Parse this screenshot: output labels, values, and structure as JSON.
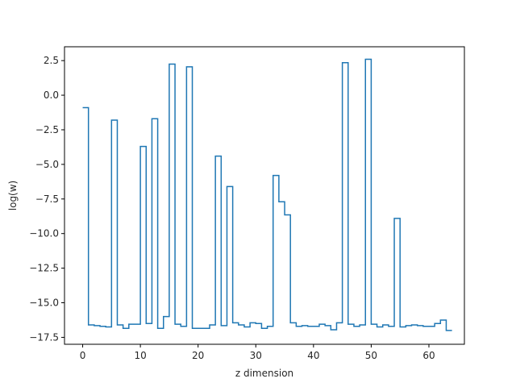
{
  "chart_data": {
    "type": "line",
    "drawstyle": "steps-post",
    "xlabel": "z dimension",
    "ylabel": "log(w)",
    "xlim": [
      -3.15,
      66.15
    ],
    "ylim": [
      -18.0,
      3.5
    ],
    "xticks": [
      0,
      10,
      20,
      30,
      40,
      50,
      60
    ],
    "yticks": [
      -17.5,
      -15.0,
      -12.5,
      -10.0,
      -7.5,
      -5.0,
      -2.5,
      0.0,
      2.5
    ],
    "ytick_labels": [
      "−17.5",
      "−15.0",
      "−12.5",
      "−10.0",
      "−7.5",
      "−5.0",
      "−2.5",
      "0.0",
      "2.5"
    ],
    "grid": false,
    "line_color": "#1f77b4",
    "series": [
      {
        "x": [
          0,
          1,
          2,
          3,
          4,
          5,
          6,
          7,
          8,
          9,
          10,
          11,
          12,
          13,
          14,
          15,
          16,
          17,
          18,
          19,
          20,
          21,
          22,
          23,
          24,
          25,
          26,
          27,
          28,
          29,
          30,
          31,
          32,
          33,
          34,
          35,
          36,
          37,
          38,
          39,
          40,
          41,
          42,
          43,
          44,
          45,
          46,
          47,
          48,
          49,
          50,
          51,
          52,
          53,
          54,
          55,
          56,
          57,
          58,
          59,
          60,
          61,
          62,
          63
        ],
        "values": [
          -0.9,
          -16.6,
          -16.65,
          -16.7,
          -16.75,
          -1.8,
          -16.6,
          -16.85,
          -16.55,
          -16.55,
          -3.7,
          -16.5,
          -1.7,
          -16.85,
          -16.0,
          2.25,
          -16.55,
          -16.7,
          2.05,
          -16.85,
          -16.85,
          -16.85,
          -16.6,
          -4.4,
          -16.65,
          -6.6,
          -16.45,
          -16.6,
          -16.75,
          -16.45,
          -16.5,
          -16.85,
          -16.7,
          -5.8,
          -7.7,
          -8.65,
          -16.45,
          -16.7,
          -16.65,
          -16.7,
          -16.7,
          -16.55,
          -16.65,
          -16.95,
          -16.45,
          2.35,
          -16.55,
          -16.7,
          -16.6,
          2.6,
          -16.55,
          -16.75,
          -16.6,
          -16.7,
          -8.9,
          -16.75,
          -16.65,
          -16.6,
          -16.65,
          -16.7,
          -16.7,
          -16.5,
          -16.25,
          -17.0
        ]
      }
    ]
  }
}
